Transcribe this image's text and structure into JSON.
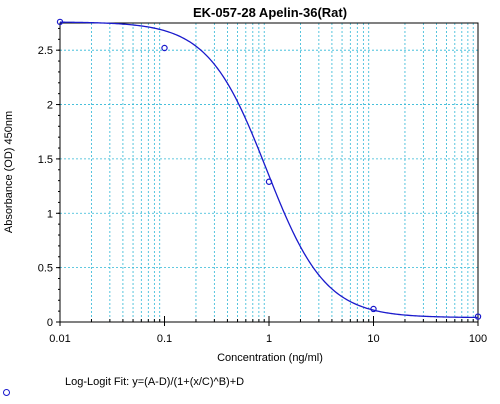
{
  "chart_data": {
    "type": "scatter",
    "title": "EK-057-28 Apelin-36(Rat)",
    "xlabel": "Concentration (ng/ml)",
    "ylabel": "Absorbance (OD) 450nm",
    "x_scale": "log",
    "xlim": [
      0.01,
      100
    ],
    "ylim": [
      0,
      2.75
    ],
    "x_ticks": [
      "0.01",
      "0.1",
      "1",
      "10",
      "100"
    ],
    "y_ticks": [
      "0",
      "0.5",
      "1",
      "1.5",
      "2",
      "2.5"
    ],
    "grid": true,
    "series": [
      {
        "x": [
          0.01,
          0.1,
          1,
          10,
          100
        ],
        "y": [
          2.76,
          2.52,
          1.29,
          0.12,
          0.05
        ]
      }
    ],
    "fit": {
      "label": "Log-Logit Fit: y=(A-D)/(1+(x/C)^B)+D",
      "A": 2.76,
      "B": 1.55,
      "C": 0.95,
      "D": 0.04
    },
    "colors": {
      "curve": "#1a1acc",
      "grid": "#2fb7d6",
      "axis": "#000000"
    }
  }
}
